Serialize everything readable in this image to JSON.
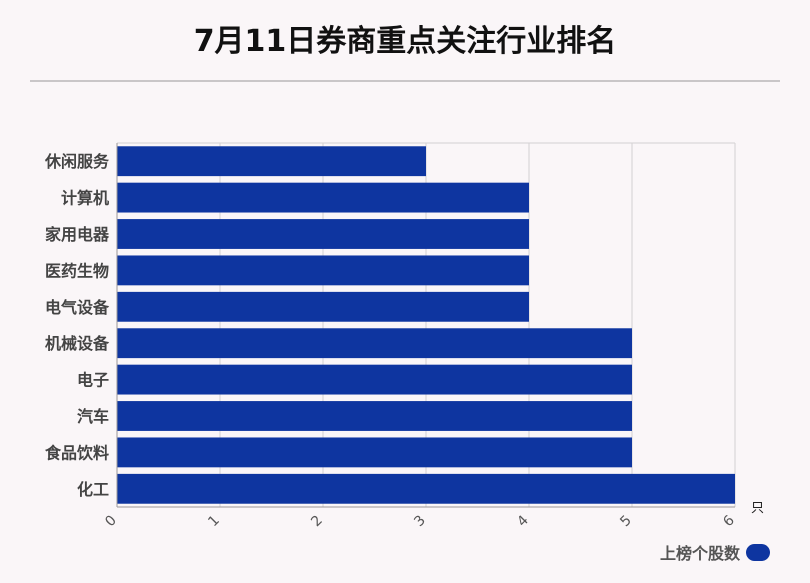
{
  "title": "7月11日券商重点关注行业排名",
  "colors": {
    "bar": "#0e35a0",
    "grid": "#d3d0d2",
    "axis": "#9a9799"
  },
  "chart_data": {
    "type": "bar",
    "orientation": "horizontal",
    "categories": [
      "休闲服务",
      "计算机",
      "家用电器",
      "医药生物",
      "电气设备",
      "机械设备",
      "电子",
      "汽车",
      "食品饮料",
      "化工"
    ],
    "series": [
      {
        "name": "上榜个股数",
        "values": [
          3,
          4,
          4,
          4,
          4,
          5,
          5,
          5,
          5,
          6
        ]
      }
    ],
    "xlim": [
      0,
      6
    ],
    "xticks": [
      0,
      1,
      2,
      3,
      4,
      5,
      6
    ],
    "x_unit": "只",
    "grid": true,
    "legend": "bottom-right"
  }
}
